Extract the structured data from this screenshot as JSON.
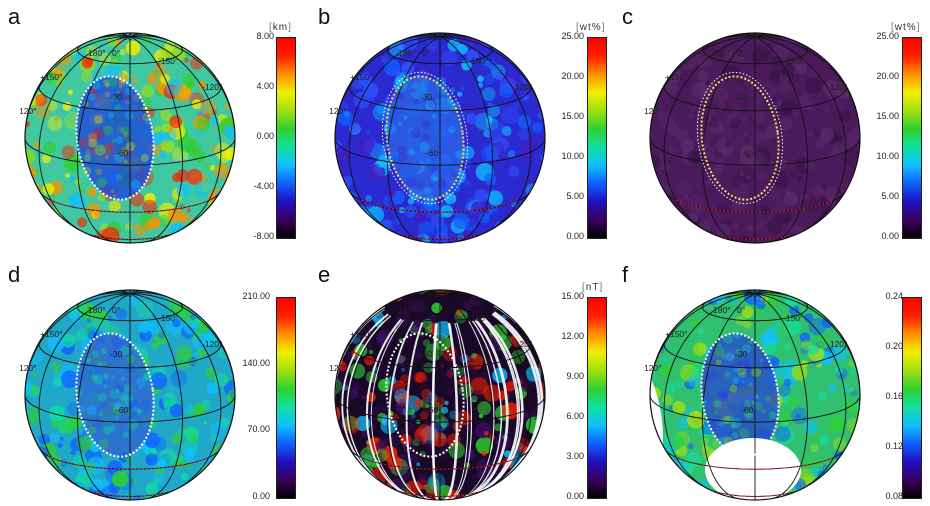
{
  "panels": [
    {
      "id": "a",
      "unit": "km",
      "ticks": [
        "8.00",
        "4.00",
        "0.00",
        "-4.00",
        "-8.00"
      ],
      "colormap": "rainbow",
      "theme": "topo"
    },
    {
      "id": "b",
      "unit": "wt%",
      "ticks": [
        "25.00",
        "20.00",
        "15.00",
        "10.00",
        "5.00",
        "0.00"
      ],
      "colormap": "rainbow",
      "theme": "blue"
    },
    {
      "id": "c",
      "unit": "wt%",
      "ticks": [
        "25.00",
        "20.00",
        "15.00",
        "10.00",
        "5.00",
        "0.00"
      ],
      "colormap": "rainbow",
      "theme": "purple"
    },
    {
      "id": "d",
      "unit": "",
      "ticks": [
        "210.00",
        "140.00",
        "70.00",
        "0.00"
      ],
      "colormap": "rainbow",
      "theme": "cyanish"
    },
    {
      "id": "e",
      "unit": "nT",
      "ticks": [
        "15.00",
        "12.00",
        "9.00",
        "6.00",
        "3.00",
        "0.00"
      ],
      "colormap": "rainbow",
      "theme": "dark"
    },
    {
      "id": "f",
      "unit": "",
      "ticks": [
        "0.24",
        "0.20",
        "0.16",
        "0.12",
        "0.08"
      ],
      "colormap": "rainbow",
      "theme": "green"
    }
  ],
  "grid_labels": {
    "lat_30": "+30°",
    "lon_180": "180°",
    "lon_0": "0°",
    "lon_150": "-150°",
    "lon_150_pos": "+150°",
    "lon_120": "-120°",
    "lon_120_pos": "+120°",
    "lat_m30": "-30",
    "lat_m60": "-60"
  },
  "colors": {
    "rainbow": [
      "#000000",
      "#3a0060",
      "#2010c0",
      "#1060ff",
      "#10c0ff",
      "#10e0a0",
      "#30d030",
      "#a0e010",
      "#f0f000",
      "#ff9000",
      "#ff2000",
      "#ff0000"
    ]
  }
}
